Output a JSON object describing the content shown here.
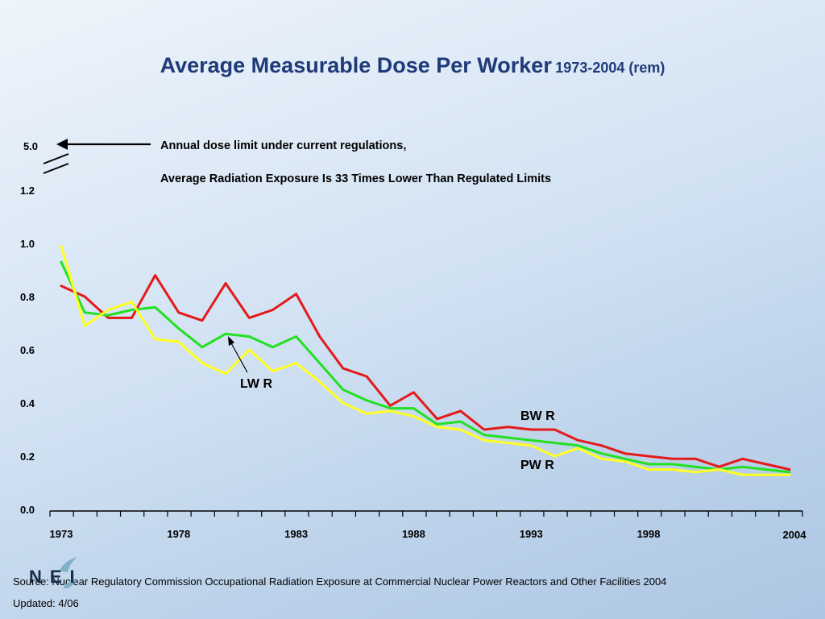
{
  "title": {
    "main": "Average Measurable Dose Per Worker",
    "sub": "1973-2004 (rem)"
  },
  "notes": {
    "line1": "Annual dose limit under current regulations,",
    "line2": "Average Radiation Exposure Is 33 Times Lower Than Regulated Limits"
  },
  "source": {
    "text": "Source: Nuclear Regulatory Commission Occupational Radiation Exposure at Commercial Nuclear Power Reactors and Other Facilities 2004",
    "updated": "Updated: 4/06"
  },
  "logo": {
    "text": "NEI"
  },
  "chart_data": {
    "type": "line",
    "y_limit_label": "5.0",
    "ylim": [
      0,
      1.2
    ],
    "y_ticks": [
      "0.0",
      "0.2",
      "0.4",
      "0.6",
      "0.8",
      "1.0",
      "1.2"
    ],
    "x_tick_labels": [
      "1973",
      "1978",
      "1983",
      "1988",
      "1993",
      "1998",
      "2004"
    ],
    "x_tick_values": [
      1973,
      1978,
      1983,
      1988,
      1993,
      1998,
      2004
    ],
    "x": [
      1973,
      1974,
      1975,
      1976,
      1977,
      1978,
      1979,
      1980,
      1981,
      1982,
      1983,
      1984,
      1985,
      1986,
      1987,
      1988,
      1989,
      1990,
      1991,
      1992,
      1993,
      1994,
      1995,
      1996,
      1997,
      1998,
      1999,
      2000,
      2001,
      2002,
      2003,
      2004
    ],
    "series": [
      {
        "name": "BW R",
        "color": "#e41a1a",
        "values": [
          0.84,
          0.8,
          0.72,
          0.72,
          0.88,
          0.74,
          0.71,
          0.85,
          0.72,
          0.75,
          0.81,
          0.65,
          0.53,
          0.5,
          0.39,
          0.44,
          0.34,
          0.37,
          0.3,
          0.31,
          0.3,
          0.3,
          0.26,
          0.24,
          0.21,
          0.2,
          0.19,
          0.19,
          0.16,
          0.19,
          0.17,
          0.15
        ]
      },
      {
        "name": "LW R",
        "color": "#22e022",
        "values": [
          0.93,
          0.74,
          0.73,
          0.75,
          0.76,
          0.68,
          0.61,
          0.66,
          0.65,
          0.61,
          0.65,
          0.55,
          0.45,
          0.41,
          0.38,
          0.38,
          0.32,
          0.33,
          0.28,
          0.27,
          0.26,
          0.25,
          0.24,
          0.21,
          0.19,
          0.17,
          0.17,
          0.16,
          0.15,
          0.16,
          0.15,
          0.14
        ]
      },
      {
        "name": "PW R",
        "color": "#ffff22",
        "values": [
          0.99,
          0.69,
          0.75,
          0.78,
          0.64,
          0.63,
          0.55,
          0.51,
          0.6,
          0.52,
          0.55,
          0.48,
          0.4,
          0.36,
          0.37,
          0.35,
          0.31,
          0.3,
          0.26,
          0.25,
          0.24,
          0.2,
          0.23,
          0.19,
          0.18,
          0.15,
          0.15,
          0.14,
          0.15,
          0.13,
          0.13,
          0.13
        ]
      }
    ]
  }
}
